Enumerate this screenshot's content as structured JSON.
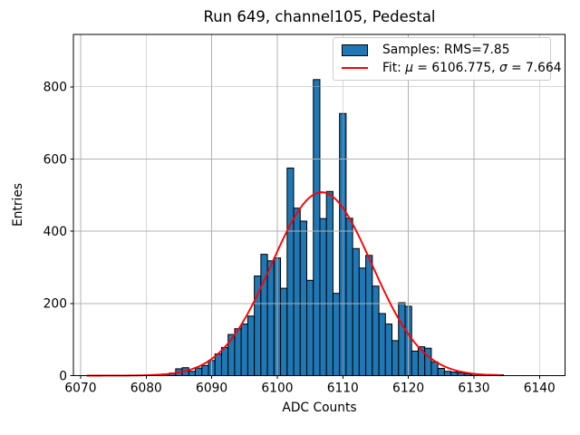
{
  "figure": {
    "title": "Run 649, channel105, Pedestal",
    "xlabel": "ADC Counts",
    "ylabel": "Entries"
  },
  "legend": {
    "samples_label": "Samples: RMS=7.85",
    "fit_prefix": "Fit: ",
    "mu_symbol": "μ",
    "mu_eq": " = 6106.775, ",
    "sigma_symbol": "σ",
    "sigma_eq": " = 7.664"
  },
  "chart_data": {
    "type": "bar",
    "subtype": "histogram",
    "title": "Run 649, channel105, Pedestal",
    "xlabel": "ADC Counts",
    "ylabel": "Entries",
    "samples_rms": 7.85,
    "bin_width": 1,
    "bin_centers": [
      6083,
      6084,
      6085,
      6086,
      6087,
      6088,
      6089,
      6090,
      6091,
      6092,
      6093,
      6094,
      6095,
      6096,
      6097,
      6098,
      6099,
      6100,
      6101,
      6102,
      6103,
      6104,
      6105,
      6106,
      6107,
      6108,
      6109,
      6110,
      6111,
      6112,
      6113,
      6114,
      6115,
      6116,
      6117,
      6118,
      6119,
      6120,
      6121,
      6122,
      6123,
      6124,
      6125,
      6126,
      6127,
      6128,
      6129,
      6130,
      6131,
      6132,
      6133,
      6134
    ],
    "values": [
      4,
      7,
      19,
      22,
      12,
      21,
      28,
      42,
      60,
      78,
      114,
      130,
      143,
      165,
      276,
      336,
      318,
      326,
      242,
      575,
      464,
      428,
      264,
      820,
      435,
      510,
      228,
      726,
      436,
      352,
      298,
      333,
      248,
      172,
      143,
      97,
      202,
      192,
      68,
      80,
      76,
      38,
      20,
      12,
      10,
      8,
      5,
      4,
      4,
      3,
      3,
      2
    ],
    "fit": {
      "type": "gaussian",
      "mu": 6106.775,
      "sigma": 7.664,
      "amplitude": 508,
      "x_range": [
        6071,
        6134.3
      ],
      "color": "#ff0000",
      "label": "Fit: μ = 6106.775, σ = 7.664"
    },
    "xlim": [
      6068.9,
      6143.9
    ],
    "ylim": [
      0,
      945
    ],
    "xticks": [
      6070,
      6080,
      6090,
      6100,
      6110,
      6120,
      6130,
      6140
    ],
    "yticks": [
      0,
      200,
      400,
      600,
      800
    ],
    "grid": true,
    "grid_over_bars": true,
    "legend_position": "upper right",
    "bar_color": "#1f77b4",
    "bar_edge_color": "#000000",
    "grid_color": "#b0b0b0",
    "spine_color": "#000000",
    "background_color": "#ffffff"
  }
}
